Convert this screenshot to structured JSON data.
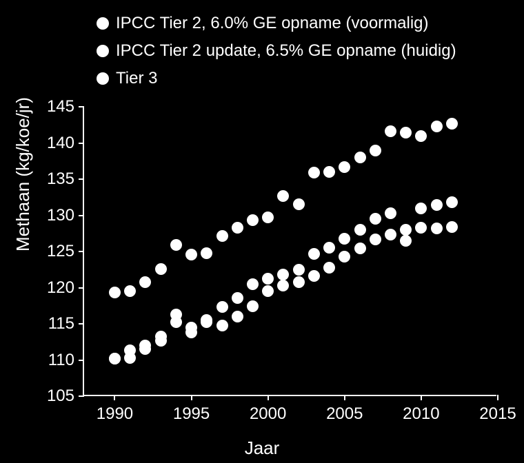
{
  "chart": {
    "type": "scatter",
    "background_color": "#000000",
    "text_color": "#ffffff",
    "marker_color": "#ffffff",
    "axis_color": "#ffffff",
    "marker_size": 17,
    "legend_marker_size": 18,
    "legend_fontsize": 24,
    "axis_label_fontsize": 24,
    "axis_title_fontsize": 26,
    "x_axis": {
      "title": "Jaar",
      "min": 1988,
      "max": 2015,
      "ticks": [
        1990,
        1995,
        2000,
        2005,
        2010,
        2015
      ],
      "tick_labels": [
        "1990",
        "1995",
        "2000",
        "2005",
        "2010",
        "2015"
      ]
    },
    "y_axis": {
      "title": "Methaan (kg/koe/jr)",
      "min": 105,
      "max": 145,
      "ticks": [
        105,
        110,
        115,
        120,
        125,
        130,
        135,
        140,
        145
      ],
      "tick_labels": [
        "105",
        "110",
        "115",
        "120",
        "125",
        "130",
        "135",
        "140",
        "145"
      ]
    },
    "series": [
      {
        "label": "IPCC Tier 2, 6.0% GE opname (voormalig)",
        "x": [
          1990,
          1991,
          1992,
          1993,
          1994,
          1995,
          1996,
          1997,
          1998,
          1999,
          2000,
          2001,
          2002,
          2003,
          2004,
          2005,
          2006,
          2007,
          2008,
          2009,
          2010,
          2011,
          2012
        ],
        "y": [
          110.2,
          110.3,
          111.5,
          112.7,
          115.2,
          114.5,
          115.2,
          114.8,
          116.0,
          117.4,
          119.5,
          120.3,
          120.8,
          121.6,
          122.8,
          124.3,
          125.4,
          126.7,
          127.3,
          126.5,
          128.3,
          128.2,
          128.4
        ]
      },
      {
        "label": "IPCC Tier 2 update, 6.5% GE opname (huidig)",
        "x": [
          1990,
          1991,
          1992,
          1993,
          1994,
          1995,
          1996,
          1997,
          1998,
          1999,
          2000,
          2001,
          2002,
          2003,
          2004,
          2005,
          2006,
          2007,
          2008,
          2009,
          2010,
          2011,
          2012
        ],
        "y": [
          110.2,
          111.3,
          112.0,
          113.2,
          116.3,
          113.8,
          115.5,
          117.3,
          118.6,
          120.5,
          121.2,
          121.8,
          122.5,
          124.7,
          125.5,
          126.8,
          128.0,
          129.5,
          130.3,
          128.0,
          131.0,
          131.4,
          131.8
        ]
      },
      {
        "label": "Tier 3",
        "x": [
          1990,
          1991,
          1992,
          1993,
          1994,
          1995,
          1996,
          1997,
          1998,
          1999,
          2000,
          2001,
          2002,
          2003,
          2004,
          2005,
          2006,
          2007,
          2008,
          2009,
          2010,
          2011,
          2012
        ],
        "y": [
          119.3,
          119.5,
          120.8,
          122.6,
          125.9,
          124.6,
          124.8,
          127.1,
          128.3,
          129.3,
          129.7,
          132.7,
          131.5,
          135.9,
          136.0,
          136.7,
          138.0,
          139.0,
          141.6,
          141.4,
          141.0,
          142.3,
          142.7
        ]
      }
    ]
  }
}
